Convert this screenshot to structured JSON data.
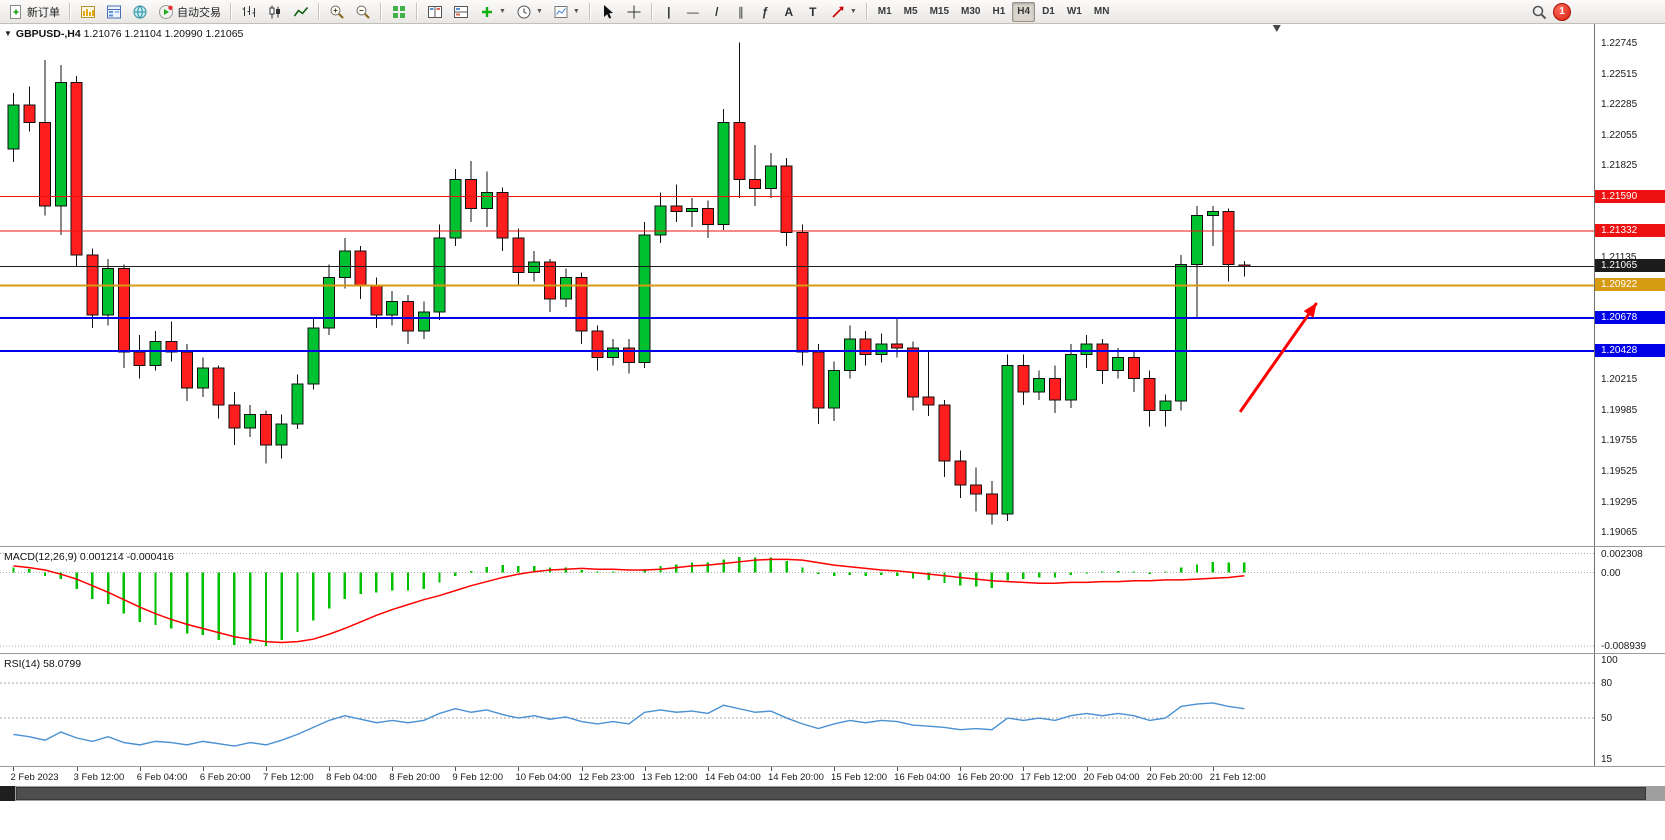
{
  "toolbar": {
    "new_order_label": "新订单",
    "autotrading_label": "自动交易",
    "timeframes": [
      "M1",
      "M5",
      "M15",
      "M30",
      "H1",
      "H4",
      "D1",
      "W1",
      "MN"
    ],
    "active_timeframe": "H4",
    "notification_count": "1",
    "glyphs": {
      "oneclick": "▼",
      "caret": "▼",
      "crosshair": "+",
      "vline": "|",
      "hline": "—",
      "trendline": "/",
      "channel": "∥",
      "fibonacci": "ƒ",
      "text_tool": "A",
      "label_tool": "T"
    }
  },
  "chart": {
    "symbol_label": "GBPUSD-,H4",
    "ohlc_label": "1.21076 1.21104 1.20990 1.21065"
  },
  "chart_data": {
    "type": "candlestick",
    "symbol": "GBPUSD-",
    "timeframe": "H4",
    "last_values": {
      "open": "1.21076",
      "high": "1.21104",
      "low": "1.20990",
      "close": "1.21065"
    },
    "price_range": {
      "max": 1.2289,
      "min": 1.1896
    },
    "colors": {
      "up": "#00c231",
      "down": "#ff1e1e",
      "wick": "#111111",
      "outline": "#111111"
    },
    "candles": [
      [
        1.2195,
        1.2237,
        1.2185,
        1.2228
      ],
      [
        1.2228,
        1.2242,
        1.2208,
        1.2215
      ],
      [
        1.2215,
        1.2262,
        1.2145,
        1.2152
      ],
      [
        1.2152,
        1.2258,
        1.213,
        1.2245
      ],
      [
        1.2245,
        1.225,
        1.2106,
        1.2115
      ],
      [
        1.2115,
        1.212,
        1.206,
        1.207
      ],
      [
        1.207,
        1.2112,
        1.2062,
        1.2105
      ],
      [
        1.2105,
        1.2108,
        1.203,
        1.2042
      ],
      [
        1.2042,
        1.2055,
        1.2022,
        1.2032
      ],
      [
        1.2032,
        1.2058,
        1.2028,
        1.205
      ],
      [
        1.205,
        1.2065,
        1.2035,
        1.2042
      ],
      [
        1.2042,
        1.2048,
        1.2005,
        1.2015
      ],
      [
        1.2015,
        1.2038,
        1.2008,
        1.203
      ],
      [
        1.203,
        1.2032,
        1.1992,
        1.2002
      ],
      [
        1.2002,
        1.2012,
        1.1972,
        1.1985
      ],
      [
        1.1985,
        1.2002,
        1.1978,
        1.1995
      ],
      [
        1.1995,
        1.1998,
        1.1958,
        1.1972
      ],
      [
        1.1972,
        1.1995,
        1.1962,
        1.1988
      ],
      [
        1.1988,
        1.2025,
        1.1984,
        1.2018
      ],
      [
        1.2018,
        1.2068,
        1.2014,
        1.206
      ],
      [
        1.206,
        1.2108,
        1.2055,
        1.2098
      ],
      [
        1.2098,
        1.2128,
        1.209,
        1.2118
      ],
      [
        1.2118,
        1.2122,
        1.2082,
        1.2092
      ],
      [
        1.2092,
        1.2098,
        1.206,
        1.207
      ],
      [
        1.207,
        1.2088,
        1.2062,
        1.208
      ],
      [
        1.208,
        1.2085,
        1.2048,
        1.2058
      ],
      [
        1.2058,
        1.208,
        1.2052,
        1.2072
      ],
      [
        1.2072,
        1.2138,
        1.2066,
        1.2128
      ],
      [
        1.2128,
        1.218,
        1.2122,
        1.2172
      ],
      [
        1.2172,
        1.2186,
        1.214,
        1.215
      ],
      [
        1.215,
        1.2178,
        1.2136,
        1.2162
      ],
      [
        1.2162,
        1.2166,
        1.2118,
        1.2128
      ],
      [
        1.2128,
        1.2135,
        1.2092,
        1.2102
      ],
      [
        1.2102,
        1.2118,
        1.2095,
        1.211
      ],
      [
        1.211,
        1.2112,
        1.2072,
        1.2082
      ],
      [
        1.2082,
        1.2105,
        1.2076,
        1.2098
      ],
      [
        1.2098,
        1.2102,
        1.2048,
        1.2058
      ],
      [
        1.2058,
        1.2062,
        1.2028,
        1.2038
      ],
      [
        1.2038,
        1.2052,
        1.2032,
        1.2045
      ],
      [
        1.2045,
        1.2052,
        1.2026,
        1.2034
      ],
      [
        1.2034,
        1.214,
        1.203,
        1.213
      ],
      [
        1.213,
        1.2162,
        1.2124,
        1.2152
      ],
      [
        1.2152,
        1.2168,
        1.214,
        1.2148
      ],
      [
        1.2148,
        1.2158,
        1.2136,
        1.215
      ],
      [
        1.215,
        1.2156,
        1.2128,
        1.2138
      ],
      [
        1.2138,
        1.2225,
        1.2134,
        1.2215
      ],
      [
        1.2215,
        1.2275,
        1.2158,
        1.2172
      ],
      [
        1.2172,
        1.2198,
        1.2152,
        1.2165
      ],
      [
        1.2165,
        1.2192,
        1.2158,
        1.2182
      ],
      [
        1.2182,
        1.2188,
        1.2122,
        1.2132
      ],
      [
        1.2132,
        1.2138,
        1.2032,
        1.2042
      ],
      [
        1.2042,
        1.2048,
        1.1988,
        1.2
      ],
      [
        1.2,
        1.2035,
        1.199,
        1.2028
      ],
      [
        1.2028,
        1.2062,
        1.2022,
        1.2052
      ],
      [
        1.2052,
        1.2058,
        1.2032,
        1.204
      ],
      [
        1.204,
        1.2056,
        1.2034,
        1.2048
      ],
      [
        1.2048,
        1.2068,
        1.2038,
        1.2045
      ],
      [
        1.2045,
        1.205,
        1.1998,
        1.2008
      ],
      [
        1.2008,
        1.2042,
        1.1994,
        1.2002
      ],
      [
        1.2002,
        1.2006,
        1.1948,
        1.196
      ],
      [
        1.196,
        1.1968,
        1.1932,
        1.1942
      ],
      [
        1.1942,
        1.1955,
        1.1922,
        1.1935
      ],
      [
        1.1935,
        1.1945,
        1.1912,
        1.192
      ],
      [
        1.192,
        1.204,
        1.1915,
        1.2032
      ],
      [
        1.2032,
        1.204,
        1.2002,
        1.2012
      ],
      [
        1.2012,
        1.2028,
        1.2006,
        1.2022
      ],
      [
        1.2022,
        1.2032,
        1.1996,
        1.2006
      ],
      [
        1.2006,
        1.2048,
        1.2,
        1.204
      ],
      [
        1.204,
        1.2055,
        1.203,
        1.2048
      ],
      [
        1.2048,
        1.2052,
        1.2018,
        1.2028
      ],
      [
        1.2028,
        1.2045,
        1.2022,
        1.2038
      ],
      [
        1.2038,
        1.2042,
        1.2012,
        1.2022
      ],
      [
        1.2022,
        1.2028,
        1.1986,
        1.1998
      ],
      [
        1.1998,
        1.201,
        1.1986,
        1.2005
      ],
      [
        1.2005,
        1.2115,
        1.1998,
        1.2108
      ],
      [
        1.2108,
        1.2152,
        1.2068,
        1.2145
      ],
      [
        1.2145,
        1.2152,
        1.2122,
        1.2148
      ],
      [
        1.2148,
        1.215,
        1.2095,
        1.2108
      ],
      [
        1.21076,
        1.21104,
        1.2099,
        1.21065
      ]
    ],
    "time_labels": [
      "2 Feb 2023",
      "3 Feb 12:00",
      "6 Feb 04:00",
      "6 Feb 20:00",
      "7 Feb 12:00",
      "8 Feb 04:00",
      "8 Feb 20:00",
      "9 Feb 12:00",
      "10 Feb 04:00",
      "12 Feb 23:00",
      "13 Feb 12:00",
      "14 Feb 04:00",
      "14 Feb 20:00",
      "15 Feb 12:00",
      "16 Feb 04:00",
      "16 Feb 20:00",
      "17 Feb 12:00",
      "20 Feb 04:00",
      "20 Feb 20:00",
      "21 Feb 12:00"
    ],
    "label_every_n_candles": 4,
    "price_grid_labels": [
      "1.22745",
      "1.22515",
      "1.22285",
      "1.22055",
      "1.21825",
      "1.21135",
      "1.20215",
      "1.19985",
      "1.19755",
      "1.19525",
      "1.19295",
      "1.19065"
    ],
    "hlines": [
      {
        "price": 1.2159,
        "label": "1.21590",
        "color": "#ee1111",
        "width": 1
      },
      {
        "price": 1.21332,
        "label": "1.21332",
        "color": "#ee1111",
        "width": 1
      },
      {
        "price": 1.21065,
        "label": "1.21065",
        "color": "#1c1c1c",
        "width": 1
      },
      {
        "price": 1.20922,
        "label": "1.20922",
        "color": "#d79b13",
        "width": 2
      },
      {
        "price": 1.20678,
        "label": "1.20678",
        "color": "#0000e8",
        "width": 2
      },
      {
        "price": 1.20428,
        "label": "1.20428",
        "color": "#0000e8",
        "width": 2
      }
    ],
    "arrow": {
      "x_start_frac": 0.778,
      "price_start": 1.1997,
      "x_end_frac": 0.826,
      "price_end": 1.2079,
      "color": "#ff0000"
    },
    "shift_marker_frac": 0.801,
    "macd": {
      "label": "MACD(12,26,9) 0.001214 -0.000416",
      "range": {
        "max": 0.0031,
        "min": -0.0099
      },
      "hist_color": "#00c000",
      "signal_color": "#ff0000",
      "axis_labels": [
        {
          "v": 0.002308,
          "t": "0.002308"
        },
        {
          "v": 0,
          "t": "0.00"
        },
        {
          "v": -0.008939,
          "t": "-0.008939"
        }
      ],
      "histogram": [
        0.0006,
        0.0004,
        -0.0004,
        -0.0008,
        -0.002,
        -0.0032,
        -0.0038,
        -0.005,
        -0.006,
        -0.0064,
        -0.0068,
        -0.0074,
        -0.0076,
        -0.0082,
        -0.0088,
        -0.0086,
        -0.0089,
        -0.0082,
        -0.0072,
        -0.0058,
        -0.0044,
        -0.0032,
        -0.0026,
        -0.0024,
        -0.0022,
        -0.0022,
        -0.002,
        -0.0012,
        -0.0004,
        0.0002,
        0.0007,
        0.0009,
        0.0008,
        0.0008,
        0.0006,
        0.0006,
        0.0003,
        0.0001,
        0.0001,
        0.0,
        0.0004,
        0.0008,
        0.001,
        0.0012,
        0.0012,
        0.0016,
        0.0019,
        0.0018,
        0.0018,
        0.0014,
        0.0006,
        -0.0002,
        -0.0004,
        -0.0003,
        -0.0004,
        -0.0003,
        -0.0004,
        -0.0007,
        -0.0009,
        -0.0013,
        -0.0016,
        -0.0017,
        -0.0019,
        -0.001,
        -0.0008,
        -0.0006,
        -0.0006,
        -0.0003,
        -0.0001,
        0.0001,
        0.0002,
        0.0001,
        -0.0002,
        0.0001,
        0.0006,
        0.001,
        0.0013,
        0.0012,
        0.0012
      ],
      "signal": [
        0.0008,
        0.0006,
        0.0003,
        -0.0002,
        -0.0008,
        -0.0016,
        -0.0024,
        -0.0033,
        -0.0042,
        -0.005,
        -0.0057,
        -0.0063,
        -0.0068,
        -0.0073,
        -0.0078,
        -0.0081,
        -0.0084,
        -0.0085,
        -0.0084,
        -0.0081,
        -0.0075,
        -0.0068,
        -0.006,
        -0.0052,
        -0.0045,
        -0.0039,
        -0.0033,
        -0.0028,
        -0.0022,
        -0.0016,
        -0.0011,
        -0.0006,
        -0.0002,
        0.0001,
        0.0003,
        0.0004,
        0.0005,
        0.0004,
        0.0004,
        0.0003,
        0.0003,
        0.0004,
        0.0006,
        0.0008,
        0.0009,
        0.0011,
        0.0013,
        0.0015,
        0.0016,
        0.0016,
        0.0015,
        0.0012,
        0.0009,
        0.0007,
        0.0005,
        0.0003,
        0.0002,
        0.0,
        -0.0002,
        -0.0004,
        -0.0006,
        -0.0008,
        -0.001,
        -0.0011,
        -0.0012,
        -0.0013,
        -0.0013,
        -0.0012,
        -0.0012,
        -0.0011,
        -0.0011,
        -0.001,
        -0.001,
        -0.0009,
        -0.0009,
        -0.0008,
        -0.0007,
        -0.0006,
        -0.0004
      ]
    },
    "rsi": {
      "label": "RSI(14) 58.0799",
      "range": {
        "max": 105,
        "min": 8
      },
      "line_color": "#4a90d2",
      "levels": [
        80,
        50
      ],
      "axis_labels": [
        {
          "v": 100,
          "t": "100"
        },
        {
          "v": 80,
          "t": "80"
        },
        {
          "v": 50,
          "t": "50"
        },
        {
          "v": 15,
          "t": "15"
        }
      ],
      "values": [
        36,
        34,
        31,
        38,
        33,
        30,
        34,
        29,
        27,
        30,
        29,
        27,
        30,
        28,
        26,
        29,
        27,
        31,
        36,
        42,
        48,
        52,
        49,
        46,
        48,
        46,
        48,
        54,
        58,
        55,
        57,
        53,
        50,
        52,
        49,
        51,
        47,
        45,
        47,
        45,
        55,
        57,
        55,
        56,
        54,
        61,
        58,
        55,
        56,
        50,
        45,
        41,
        45,
        48,
        46,
        48,
        47,
        44,
        43,
        42,
        40,
        41,
        40,
        50,
        48,
        50,
        48,
        52,
        54,
        52,
        54,
        52,
        48,
        50,
        60,
        62,
        63,
        60,
        58.08
      ]
    }
  }
}
